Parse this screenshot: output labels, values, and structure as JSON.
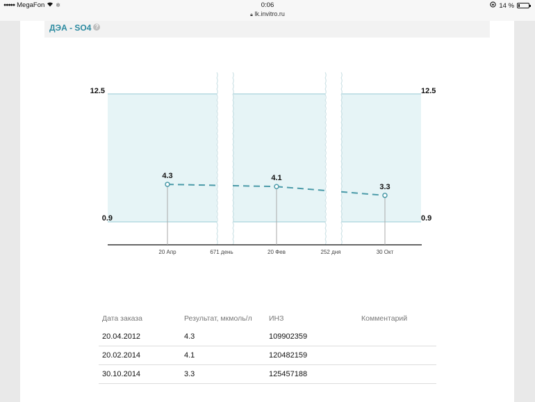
{
  "status_bar": {
    "carrier": "MegaFon",
    "time": "0:06",
    "url": "lk.invitro.ru",
    "battery": "14 %",
    "battery_level": 0.14
  },
  "header": {
    "title": "ДЭА - SO4"
  },
  "chart_data": {
    "type": "line",
    "ref_upper": 12.5,
    "ref_lower": 0.9,
    "axis_labels": {
      "upper": "12.5",
      "lower": "0.9"
    },
    "points": [
      {
        "date": "20 Апр",
        "value": 4.3,
        "label": "4.3"
      },
      {
        "date": "20 Фев",
        "value": 4.1,
        "label": "4.1"
      },
      {
        "date": "30 Окт",
        "value": 3.3,
        "label": "3.3"
      }
    ],
    "gaps": [
      "671 день",
      "252 дня"
    ],
    "reference_color": "#e6f4f6",
    "line_color": "#4a9aa8"
  },
  "table": {
    "headers": [
      "Дата заказа",
      "Результат, мкмоль/л",
      "ИНЗ",
      "Комментарий"
    ],
    "rows": [
      {
        "date": "20.04.2012",
        "result": "4.3",
        "inz": "109902359",
        "comment": ""
      },
      {
        "date": "20.02.2014",
        "result": "4.1",
        "inz": "120482159",
        "comment": ""
      },
      {
        "date": "30.10.2014",
        "result": "3.3",
        "inz": "125457188",
        "comment": ""
      }
    ]
  }
}
